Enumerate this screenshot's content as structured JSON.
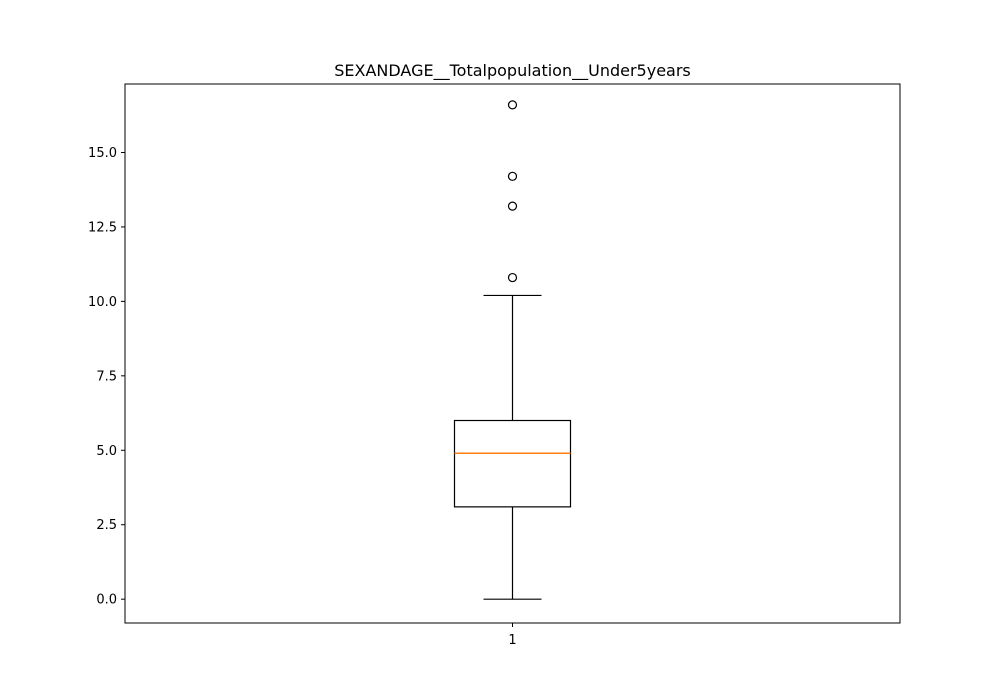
{
  "chart_data": {
    "type": "boxplot",
    "title": "SEXANDAGE__Totalpopulation__Under5years",
    "xlabel": "",
    "ylabel": "",
    "categories": [
      "1"
    ],
    "ylim": [
      -0.8,
      17.3
    ],
    "yticks": [
      0.0,
      2.5,
      5.0,
      7.5,
      10.0,
      12.5,
      15.0
    ],
    "ytick_labels": [
      "0.0",
      "2.5",
      "5.0",
      "7.5",
      "10.0",
      "12.5",
      "15.0"
    ],
    "grid": false,
    "boxes": [
      {
        "category": "1",
        "whisker_low": 0.0,
        "q1": 3.1,
        "median": 4.9,
        "q3": 6.0,
        "whisker_high": 10.2,
        "outliers": [
          10.8,
          13.2,
          14.2,
          16.6
        ]
      }
    ],
    "colors": {
      "box": "#000000",
      "median": "#ff7f0e",
      "axes": "#000000",
      "background": "#ffffff"
    }
  }
}
